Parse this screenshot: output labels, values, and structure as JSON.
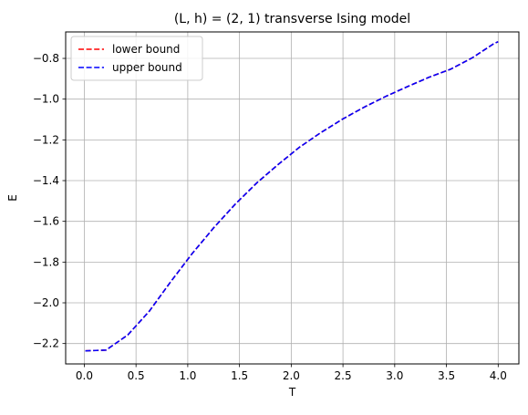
{
  "chart_data": {
    "type": "line",
    "title": "(L, h) = (2, 1) transverse Ising model",
    "xlabel": "T",
    "ylabel": "E",
    "xlim": [
      -0.18,
      4.2
    ],
    "ylim": [
      -2.3,
      -0.67
    ],
    "x_ticks": [
      0.0,
      0.5,
      1.0,
      1.5,
      2.0,
      2.5,
      3.0,
      3.5,
      4.0
    ],
    "x_tick_labels": [
      "0.0",
      "0.5",
      "1.0",
      "1.5",
      "2.0",
      "2.5",
      "3.0",
      "3.5",
      "4.0"
    ],
    "y_ticks": [
      -2.2,
      -2.0,
      -1.8,
      -1.6,
      -1.4,
      -1.2,
      -1.0,
      -0.8
    ],
    "y_tick_labels": [
      "−2.2",
      "−2.0",
      "−1.8",
      "−1.6",
      "−1.4",
      "−1.2",
      "−1.0",
      "−0.8"
    ],
    "grid": true,
    "legend_position": "upper-left",
    "x": [
      0.01,
      0.21,
      0.42,
      0.63,
      0.83,
      1.04,
      1.25,
      1.46,
      1.67,
      1.88,
      2.08,
      2.29,
      2.5,
      2.71,
      2.92,
      3.13,
      3.33,
      3.54,
      3.75,
      3.96,
      4.0
    ],
    "series": [
      {
        "name": "lower bound",
        "color": "#ff0000",
        "style": "dashed",
        "values": [
          -2.236,
          -2.232,
          -2.158,
          -2.04,
          -1.9,
          -1.76,
          -1.632,
          -1.515,
          -1.41,
          -1.318,
          -1.236,
          -1.163,
          -1.097,
          -1.038,
          -0.985,
          -0.937,
          -0.893,
          -0.853,
          -0.797,
          -0.727,
          -0.718
        ]
      },
      {
        "name": "upper bound",
        "color": "#0000ff",
        "style": "dashed",
        "values": [
          -2.236,
          -2.232,
          -2.158,
          -2.04,
          -1.9,
          -1.76,
          -1.632,
          -1.515,
          -1.41,
          -1.318,
          -1.236,
          -1.163,
          -1.097,
          -1.038,
          -0.985,
          -0.937,
          -0.893,
          -0.853,
          -0.797,
          -0.727,
          -0.718
        ]
      }
    ]
  }
}
